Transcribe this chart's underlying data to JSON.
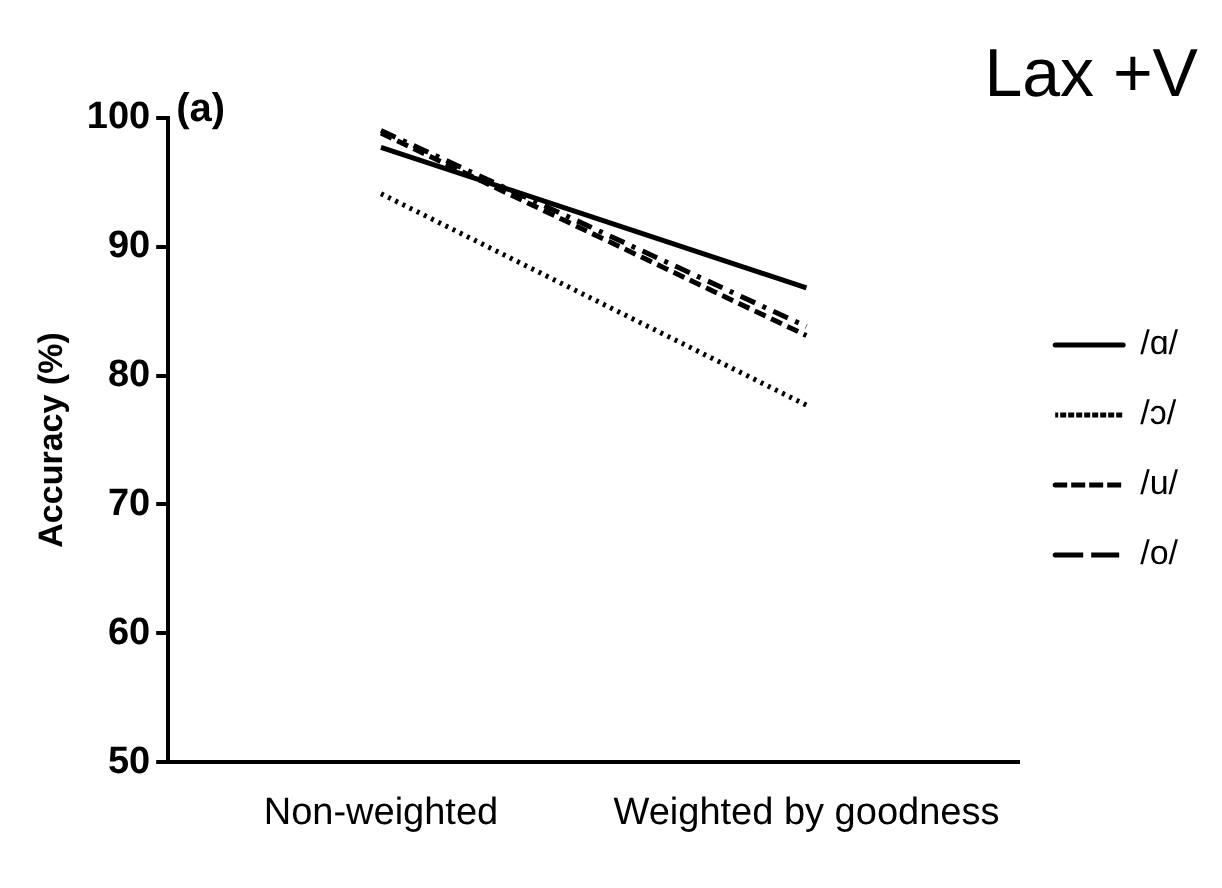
{
  "chart_data": {
    "type": "line",
    "title": "Lax +V",
    "ylabel": "Accuracy (%)",
    "annotations": [
      "(a)"
    ],
    "categories": [
      "Non-weighted",
      "Weighted by goodness"
    ],
    "series": [
      {
        "name": "/ɑ/",
        "color": "#000000",
        "line_style": "solid",
        "values": [
          97.7,
          86.8
        ]
      },
      {
        "name": "/ɔ/",
        "color": "#000000",
        "line_style": "dotted",
        "values": [
          94.1,
          77.7
        ]
      },
      {
        "name": "/u/",
        "color": "#000000",
        "line_style": "dashed",
        "values": [
          98.8,
          83.1
        ]
      },
      {
        "name": "/o/",
        "color": "#000000",
        "line_style": "dashdot",
        "values": [
          99.0,
          83.8
        ]
      }
    ],
    "ylim": [
      50,
      100
    ],
    "yticks": [
      50,
      60,
      70,
      80,
      90,
      100
    ],
    "grid": false,
    "legend": "right",
    "marker": "none"
  }
}
